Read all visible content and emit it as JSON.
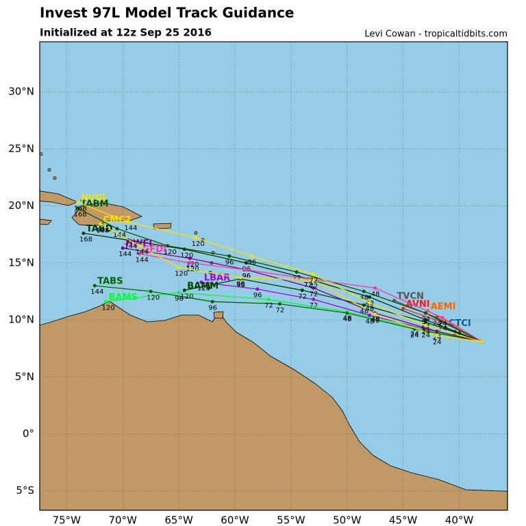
{
  "header": {
    "title": "Invest 97L Model Track Guidance",
    "subtitle": "Initialized at 12z Sep 25 2016",
    "credit": "Levi Cowan - tropicaltidbits.com"
  },
  "map": {
    "lonlim": [
      -77.4,
      -35.7
    ],
    "latlim": [
      -6.7,
      34.4
    ],
    "lat_ticks": [
      {
        "value": 30,
        "label": "30°N"
      },
      {
        "value": 25,
        "label": "25°N"
      },
      {
        "value": 20,
        "label": "20°N"
      },
      {
        "value": 15,
        "label": "15°N"
      },
      {
        "value": 10,
        "label": "10°N"
      },
      {
        "value": 5,
        "label": "5°N"
      },
      {
        "value": 0,
        "label": "0°"
      },
      {
        "value": -5,
        "label": "5°S"
      }
    ],
    "lon_ticks": [
      {
        "value": -75,
        "label": "75°W"
      },
      {
        "value": -70,
        "label": "70°W"
      },
      {
        "value": -65,
        "label": "65°W"
      },
      {
        "value": -60,
        "label": "60°W"
      },
      {
        "value": -55,
        "label": "55°W"
      },
      {
        "value": -50,
        "label": "50°W"
      },
      {
        "value": -45,
        "label": "45°W"
      },
      {
        "value": -40,
        "label": "40°W"
      }
    ]
  },
  "models": [
    {
      "name": "CTCI",
      "color": "#0a5a9c",
      "points": [
        {
          "lon": -38,
          "lat": 8.1
        },
        {
          "lon": -40,
          "lat": 8.8
        },
        {
          "lon": -41.2,
          "lat": 9.3
        }
      ]
    },
    {
      "name": "AEMI",
      "color": "#ff6600",
      "points": [
        {
          "lon": -38,
          "lat": 8.1
        },
        {
          "lon": -40.2,
          "lat": 9.4,
          "hour": 24
        },
        {
          "lon": -42.8,
          "lat": 10.8
        }
      ]
    },
    {
      "name": "AVNI",
      "color": "#ff1a1a",
      "points": [
        {
          "lon": -38,
          "lat": 8.1
        },
        {
          "lon": -41.5,
          "lat": 9.8,
          "hour": 24
        },
        {
          "lon": -45,
          "lat": 11
        }
      ]
    },
    {
      "name": "TVCN",
      "color": "#555555",
      "points": [
        {
          "lon": -38,
          "lat": 8.1
        },
        {
          "lon": -42,
          "lat": 10.2,
          "hour": 24
        },
        {
          "lon": -45.8,
          "lat": 11.7
        }
      ]
    },
    {
      "name": "LBAR",
      "color": "#a000e0",
      "points": [
        {
          "lon": -38,
          "lat": 8.1
        },
        {
          "lon": -43,
          "lat": 9.2,
          "hour": 24
        },
        {
          "lon": -48,
          "lat": 10.4,
          "hour": 48
        },
        {
          "lon": -53,
          "lat": 11.8,
          "hour": 72
        },
        {
          "lon": -58,
          "lat": 12.7,
          "hour": 96
        },
        {
          "lon": -63,
          "lat": 13.3,
          "hour": 120
        }
      ]
    },
    {
      "name": "BAMS",
      "color": "#00ff33",
      "points": [
        {
          "lon": -38,
          "lat": 8.1
        },
        {
          "lon": -44,
          "lat": 9.3,
          "hour": 24
        },
        {
          "lon": -50,
          "lat": 10.7,
          "hour": 48
        },
        {
          "lon": -57,
          "lat": 11.8,
          "hour": 72
        },
        {
          "lon": -65,
          "lat": 12.4,
          "hour": 96
        },
        {
          "lon": -71.5,
          "lat": 11.6,
          "hour": 120
        }
      ]
    },
    {
      "name": "BAMM",
      "color": "#004400",
      "points": [
        {
          "lon": -38,
          "lat": 8.1
        },
        {
          "lon": -43,
          "lat": 9.8,
          "hour": 24
        },
        {
          "lon": -48.5,
          "lat": 11.3,
          "hour": 48
        },
        {
          "lon": -54,
          "lat": 12.6,
          "hour": 72
        },
        {
          "lon": -59.5,
          "lat": 13.6,
          "hour": 96
        },
        {
          "lon": -64.5,
          "lat": 12.6,
          "hour": 120
        }
      ]
    },
    {
      "name": "TABD",
      "color": "#003300",
      "points": [
        {
          "lon": -38,
          "lat": 8.1
        },
        {
          "lon": -43,
          "lat": 10,
          "hour": 24
        },
        {
          "lon": -48,
          "lat": 12,
          "hour": 48
        },
        {
          "lon": -53.5,
          "lat": 13.6,
          "hour": 72
        },
        {
          "lon": -59,
          "lat": 15,
          "hour": 96
        },
        {
          "lon": -64.5,
          "lat": 16.2,
          "hour": 120
        },
        {
          "lon": -69.5,
          "lat": 17,
          "hour": 144
        },
        {
          "lon": -73.5,
          "lat": 17.6,
          "hour": 168
        }
      ]
    },
    {
      "name": "TABM",
      "color": "#005500",
      "points": [
        {
          "lon": -38,
          "lat": 8.1
        },
        {
          "lon": -43,
          "lat": 10.6,
          "hour": 24
        },
        {
          "lon": -48.5,
          "lat": 12.5,
          "hour": 48
        },
        {
          "lon": -54.5,
          "lat": 14.2,
          "hour": 72
        },
        {
          "lon": -60.5,
          "lat": 15.6,
          "hour": 96
        },
        {
          "lon": -66,
          "lat": 16.5,
          "hour": 120
        },
        {
          "lon": -70.5,
          "lat": 18,
          "hour": 144
        },
        {
          "lon": -74,
          "lat": 19.8,
          "hour": 168
        }
      ]
    },
    {
      "name": "TABS",
      "color": "#006600",
      "points": [
        {
          "lon": -38,
          "lat": 8.1
        },
        {
          "lon": -44,
          "lat": 9.2,
          "hour": 24
        },
        {
          "lon": -50,
          "lat": 10.6,
          "hour": 48
        },
        {
          "lon": -56,
          "lat": 11.4,
          "hour": 72
        },
        {
          "lon": -62,
          "lat": 11.6,
          "hour": 96
        },
        {
          "lon": -67.5,
          "lat": 12.5,
          "hour": 120
        },
        {
          "lon": -72.5,
          "lat": 13,
          "hour": 144
        }
      ]
    },
    {
      "name": "HWFI",
      "color": "#800080",
      "points": [
        {
          "lon": -38,
          "lat": 8.1
        },
        {
          "lon": -42,
          "lat": 9,
          "hour": 24
        },
        {
          "lon": -47.5,
          "lat": 10.6,
          "hour": 48
        },
        {
          "lon": -53,
          "lat": 12.8,
          "hour": 72
        },
        {
          "lon": -59,
          "lat": 14.4,
          "hour": 96
        },
        {
          "lon": -64,
          "lat": 15.4,
          "hour": 120
        },
        {
          "lon": -70,
          "lat": 16.3,
          "hour": 144
        }
      ]
    },
    {
      "name": "GFDI",
      "color": "#ff33aa",
      "points": [
        {
          "lon": -38,
          "lat": 8.1
        },
        {
          "lon": -41.5,
          "lat": 10.2,
          "hour": 24
        },
        {
          "lon": -47.5,
          "lat": 12.8,
          "hour": 48
        },
        {
          "lon": -53.5,
          "lat": 13.6,
          "hour": 72
        },
        {
          "lon": -59,
          "lat": 14.4,
          "hour": 96
        },
        {
          "lon": -64,
          "lat": 15,
          "hour": 120
        },
        {
          "lon": -68.5,
          "lat": 15.8,
          "hour": 144
        }
      ]
    },
    {
      "name": "CMC2",
      "color": "#ffdd00",
      "points": [
        {
          "lon": -38,
          "lat": 8.1
        },
        {
          "lon": -42,
          "lat": 8.6,
          "hour": 24
        },
        {
          "lon": -47.5,
          "lat": 10.5,
          "hour": 48
        },
        {
          "lon": -53,
          "lat": 13.5,
          "hour": 72
        },
        {
          "lon": -59.5,
          "lat": 13.7,
          "hour": 96
        },
        {
          "lon": -65,
          "lat": 14.6,
          "hour": 120
        },
        {
          "lon": -68.5,
          "lat": 16.5,
          "hour": 144
        },
        {
          "lon": -72,
          "lat": 18.4,
          "hour": 168
        }
      ]
    },
    {
      "name": "NVGI",
      "color": "#ffe000",
      "points": [
        {
          "lon": -38,
          "lat": 8.1
        },
        {
          "lon": -43,
          "lat": 9.5,
          "hour": 24
        },
        {
          "lon": -48,
          "lat": 11.5,
          "hour": 48
        },
        {
          "lon": -53,
          "lat": 14,
          "hour": 72
        },
        {
          "lon": -58.5,
          "lat": 15.6,
          "hour": 96
        },
        {
          "lon": -63.5,
          "lat": 17.2,
          "hour": 120
        },
        {
          "lon": -69.5,
          "lat": 18.6,
          "hour": 144
        },
        {
          "lon": -74,
          "lat": 20.3,
          "hour": 168
        }
      ]
    }
  ]
}
